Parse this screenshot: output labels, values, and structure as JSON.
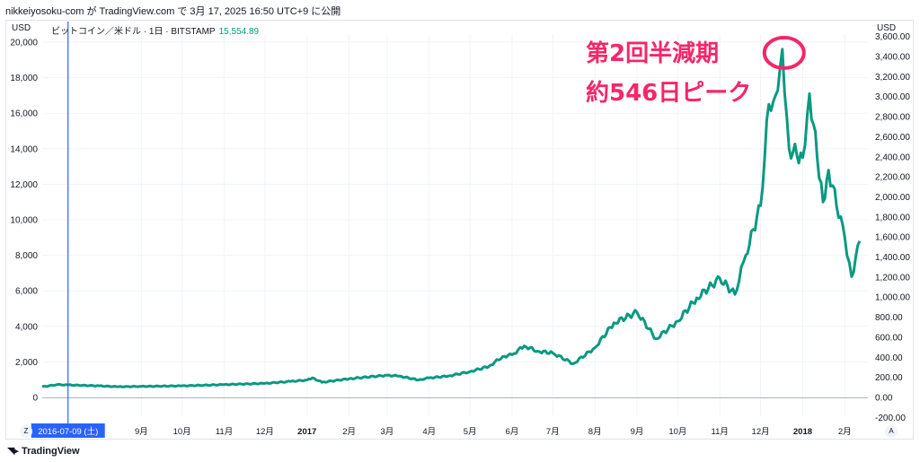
{
  "byline": "nikkeiyosoku-com が TradingView.com で 3月 17, 2025 16:50 UTC+9 に公開",
  "legend": {
    "symbol": "ビットコイン／米ドル · 1日 · BITSTAMP",
    "price": "15,554.89"
  },
  "left_unit": "USD",
  "right_unit": "USD",
  "cursor_date": "2016-07-09 (土)",
  "annotation": {
    "line1": "第2回半減期",
    "line2": "約546日ピーク"
  },
  "footer": {
    "brand": "TradingView"
  },
  "corner_buttons": {
    "left": "Z",
    "right": "A"
  },
  "colors": {
    "line": "#089981",
    "annotation": "#f5266a",
    "cursor": "#2962ff",
    "cursor_label_bg": "#2962ff"
  },
  "chart_data": {
    "type": "line",
    "series": [
      {
        "x": [
          "2016-06-20",
          "2016-07-01",
          "2016-07-09",
          "2016-08-01",
          "2016-08-15",
          "2016-09-01",
          "2016-10-01",
          "2016-11-01",
          "2016-12-01",
          "2016-12-20",
          "2017-01-01",
          "2017-01-05",
          "2017-01-12",
          "2017-02-01",
          "2017-03-01",
          "2017-03-10",
          "2017-03-24",
          "2017-04-01",
          "2017-04-15",
          "2017-05-01",
          "2017-05-15",
          "2017-05-25",
          "2017-06-01",
          "2017-06-10",
          "2017-06-20",
          "2017-07-01",
          "2017-07-16",
          "2017-08-01",
          "2017-08-15",
          "2017-09-01",
          "2017-09-15",
          "2017-10-01",
          "2017-10-15",
          "2017-11-01",
          "2017-11-12",
          "2017-11-20",
          "2017-12-01",
          "2017-12-07",
          "2017-12-12",
          "2017-12-17",
          "2017-12-22",
          "2018-01-01",
          "2018-01-06",
          "2018-01-16",
          "2018-01-20",
          "2018-02-01",
          "2018-02-06",
          "2018-02-12"
        ],
        "y": [
          600,
          720,
          700,
          650,
          600,
          620,
          650,
          720,
          790,
          900,
          980,
          1100,
          850,
          1050,
          1250,
          1200,
          980,
          1100,
          1200,
          1450,
          1750,
          2300,
          2400,
          2900,
          2600,
          2500,
          1900,
          2800,
          4200,
          4800,
          3300,
          4300,
          5600,
          6700,
          5800,
          8000,
          10800,
          16500,
          17000,
          19600,
          14000,
          13500,
          17100,
          11000,
          12800,
          9000,
          6800,
          8800
        ]
      }
    ],
    "ylabel": "USD",
    "right_axis_label": "USD",
    "ylim": [
      -100,
      20000
    ],
    "xlim": [
      "2016-06-20",
      "2018-02-18"
    ],
    "left_ticks": [
      "0",
      "2,000",
      "4,000",
      "6,000",
      "8,000",
      "10,000",
      "12,000",
      "14,000",
      "16,000",
      "18,000",
      "20,000"
    ],
    "right_ticks": [
      "-200.00",
      "0.00",
      "200.00",
      "400.00",
      "600.00",
      "800.00",
      "1,000.00",
      "1,200.00",
      "1,400.00",
      "1,600.00",
      "1,800.00",
      "2,000.00",
      "2,200.00",
      "2,400.00",
      "2,600.00",
      "2,800.00",
      "3,000.00",
      "3,200.00",
      "3,400.00",
      "3,600.00"
    ],
    "x_ticks": [
      {
        "label": "月",
        "date": "2016-06-22"
      },
      {
        "label": "9月",
        "date": "2016-09-01"
      },
      {
        "label": "10月",
        "date": "2016-10-01"
      },
      {
        "label": "11月",
        "date": "2016-11-01"
      },
      {
        "label": "12月",
        "date": "2016-12-01"
      },
      {
        "label": "2017",
        "date": "2017-01-01",
        "bold": true
      },
      {
        "label": "2月",
        "date": "2017-02-01"
      },
      {
        "label": "3月",
        "date": "2017-03-01"
      },
      {
        "label": "4月",
        "date": "2017-04-01"
      },
      {
        "label": "5月",
        "date": "2017-05-01"
      },
      {
        "label": "6月",
        "date": "2017-06-01"
      },
      {
        "label": "7月",
        "date": "2017-07-01"
      },
      {
        "label": "8月",
        "date": "2017-08-01"
      },
      {
        "label": "9月",
        "date": "2017-09-01"
      },
      {
        "label": "10月",
        "date": "2017-10-01"
      },
      {
        "label": "11月",
        "date": "2017-11-01"
      },
      {
        "label": "12月",
        "date": "2017-12-01"
      },
      {
        "label": "2018",
        "date": "2018-01-01",
        "bold": true
      },
      {
        "label": "2月",
        "date": "2018-02-01"
      }
    ],
    "grid": true,
    "cursor_x": "2016-07-09",
    "peak_marker": {
      "x": "2017-12-17",
      "y": 19600
    }
  }
}
